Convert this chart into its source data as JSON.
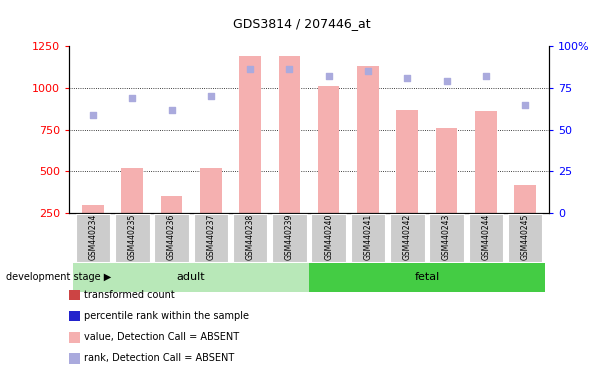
{
  "title": "GDS3814 / 207446_at",
  "categories": [
    "GSM440234",
    "GSM440235",
    "GSM440236",
    "GSM440237",
    "GSM440238",
    "GSM440239",
    "GSM440240",
    "GSM440241",
    "GSM440242",
    "GSM440243",
    "GSM440244",
    "GSM440245"
  ],
  "bar_values": [
    300,
    520,
    350,
    520,
    1190,
    1190,
    1010,
    1130,
    870,
    760,
    860,
    420
  ],
  "rank_values": [
    59,
    69,
    62,
    70,
    86,
    86,
    82,
    85,
    81,
    79,
    82,
    65
  ],
  "adult_indices": [
    0,
    1,
    2,
    3,
    4,
    5
  ],
  "fetal_indices": [
    6,
    7,
    8,
    9,
    10,
    11
  ],
  "adult_label": "adult",
  "fetal_label": "fetal",
  "stage_label": "development stage",
  "ylim_left": [
    250,
    1250
  ],
  "ylim_right": [
    0,
    100
  ],
  "yticks_left": [
    250,
    500,
    750,
    1000,
    1250
  ],
  "yticks_right": [
    0,
    25,
    50,
    75,
    100
  ],
  "bar_color_absent": "#f5b0b0",
  "dot_color_absent": "#aaaadd",
  "bar_color_present": "#cc4444",
  "dot_color_present": "#2222cc",
  "adult_bg": "#b8e8b8",
  "fetal_bg": "#44cc44",
  "label_bg": "#cccccc",
  "grid_color": "black",
  "legend_items": [
    {
      "label": "transformed count",
      "color": "#cc4444"
    },
    {
      "label": "percentile rank within the sample",
      "color": "#2222cc"
    },
    {
      "label": "value, Detection Call = ABSENT",
      "color": "#f5b0b0"
    },
    {
      "label": "rank, Detection Call = ABSENT",
      "color": "#aaaadd"
    }
  ]
}
